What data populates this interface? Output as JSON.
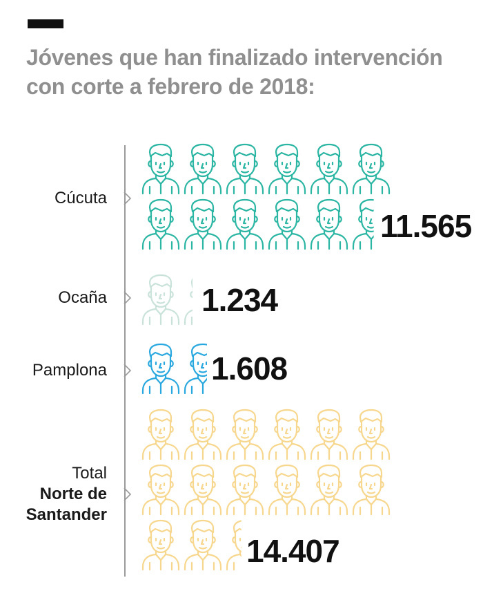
{
  "header": {
    "title_line1": "Jóvenes que han finalizado intervención",
    "title_line2": "con corte a febrero de 2018:"
  },
  "chart_data": {
    "type": "pictogram",
    "title": "Jóvenes que han finalizado intervención con corte a febrero de 2018:",
    "categories": [
      "Cúcuta",
      "Ocaña",
      "Pamplona",
      "Total Norte de Santander"
    ],
    "values": [
      11565,
      1234,
      1608,
      14407
    ],
    "value_labels": [
      "11.565",
      "1.234",
      "1.608",
      "14.407"
    ],
    "icon": "young-person-icon",
    "units_per_icon": 1000,
    "colors": [
      "#2bb5a3",
      "#c9e2da",
      "#29a8df",
      "#f7d78e"
    ]
  },
  "rows": [
    {
      "label": "Cúcuta",
      "value_label": "11.565"
    },
    {
      "label": "Ocaña",
      "value_label": "1.234"
    },
    {
      "label": "Pamplona",
      "value_label": "1.608"
    },
    {
      "label_line1": "Total",
      "label_line2": "Norte de",
      "label_line3": "Santander",
      "value_label": "14.407"
    }
  ]
}
